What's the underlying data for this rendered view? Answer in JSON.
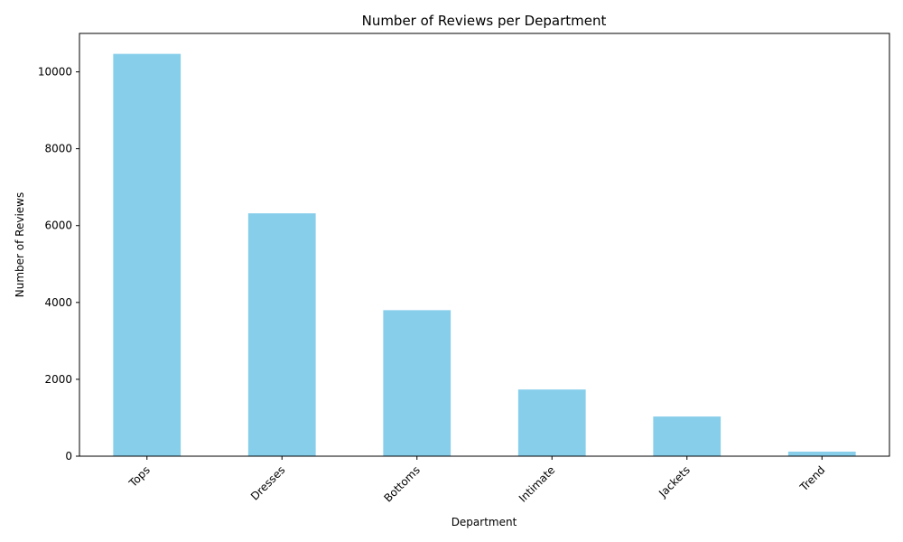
{
  "chart_data": {
    "type": "bar",
    "title": "Number of Reviews per Department",
    "xlabel": "Department",
    "ylabel": "Number of Reviews",
    "categories": [
      "Tops",
      "Dresses",
      "Bottoms",
      "Intimate",
      "Jackets",
      "Trend"
    ],
    "values": [
      10468,
      6319,
      3799,
      1735,
      1032,
      119
    ],
    "ylim": [
      0,
      11000
    ],
    "yticks": [
      0,
      2000,
      4000,
      6000,
      8000,
      10000
    ],
    "grid": false,
    "legend": "none",
    "bar_color": "#87CEEB"
  }
}
